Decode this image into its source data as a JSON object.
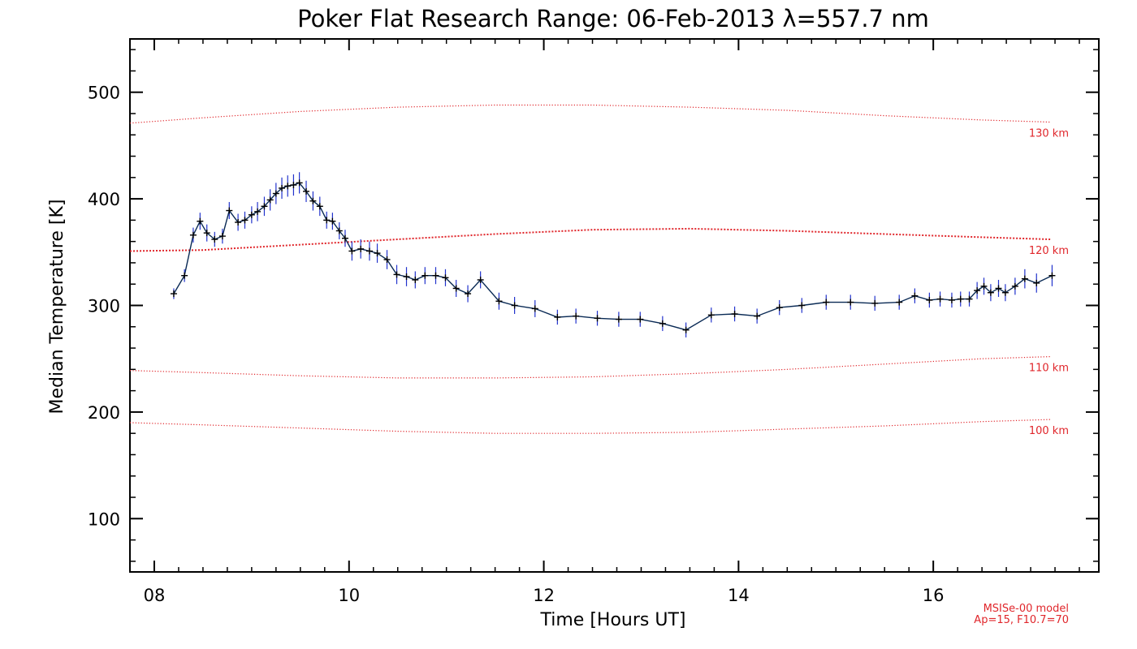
{
  "chart_data": {
    "type": "line",
    "title": "Poker Flat Research Range: 06-Feb-2013 λ=557.7 nm",
    "xlabel": "Time [Hours UT]",
    "ylabel": "Median Temperature [K]",
    "xlim": [
      7.75,
      17.7
    ],
    "ylim": [
      50,
      550
    ],
    "xticks": [
      8,
      10,
      12,
      14,
      16
    ],
    "xtick_labels": [
      "08",
      "10",
      "12",
      "14",
      "16"
    ],
    "yticks": [
      100,
      200,
      300,
      400,
      500
    ],
    "ytick_labels": [
      "100",
      "200",
      "300",
      "400",
      "500"
    ],
    "grid": false,
    "colors": {
      "data_line": "#0a2a55",
      "error_bar": "#2233cc",
      "marker": "#000000",
      "model": "#e0262b"
    },
    "series": [
      {
        "x": [
          8.2,
          8.31,
          8.4,
          8.47,
          8.54,
          8.62,
          8.7,
          8.77,
          8.86,
          8.93,
          9.0,
          9.06,
          9.13,
          9.19,
          9.25,
          9.31,
          9.37,
          9.43,
          9.49,
          9.56,
          9.63,
          9.7,
          9.77,
          9.83,
          9.9,
          9.96,
          10.03,
          10.12,
          10.21,
          10.29,
          10.39,
          10.49,
          10.59,
          10.68,
          10.78,
          10.89,
          10.99,
          11.1,
          11.22,
          11.35,
          11.54,
          11.7,
          11.91,
          12.14,
          12.33,
          12.55,
          12.77,
          12.99,
          13.22,
          13.46,
          13.72,
          13.96,
          14.19,
          14.42,
          14.65,
          14.9,
          15.15,
          15.4,
          15.65,
          15.81,
          15.96,
          16.07,
          16.19,
          16.28,
          16.37,
          16.45,
          16.52,
          16.59,
          16.67,
          16.74,
          16.84,
          16.94,
          17.06,
          17.22
        ],
        "values": [
          311,
          328,
          366,
          379,
          368,
          362,
          365,
          389,
          378,
          380,
          385,
          388,
          393,
          399,
          405,
          410,
          412,
          413,
          415,
          407,
          398,
          393,
          380,
          379,
          370,
          363,
          351,
          353,
          351,
          349,
          343,
          329,
          327,
          324,
          328,
          328,
          326,
          316,
          311,
          324,
          304,
          300,
          297,
          289,
          290,
          288,
          287,
          287,
          283,
          277,
          291,
          292,
          290,
          298,
          300,
          303,
          303,
          302,
          303,
          309,
          305,
          306,
          305,
          306,
          306,
          314,
          318,
          312,
          316,
          312,
          318,
          325,
          321,
          328
        ],
        "error": [
          5,
          6,
          7,
          8,
          8,
          7,
          7,
          8,
          8,
          8,
          8,
          9,
          9,
          10,
          10,
          10,
          10,
          10,
          10,
          10,
          9,
          9,
          8,
          8,
          8,
          8,
          9,
          9,
          9,
          9,
          9,
          9,
          9,
          8,
          8,
          8,
          8,
          8,
          8,
          8,
          8,
          8,
          8,
          7,
          7,
          7,
          7,
          7,
          7,
          7,
          7,
          7,
          7,
          7,
          7,
          7,
          7,
          7,
          7,
          7,
          7,
          7,
          7,
          7,
          7,
          8,
          8,
          8,
          8,
          8,
          8,
          9,
          9,
          10
        ]
      }
    ],
    "model_curves": [
      {
        "label": "130 km",
        "x": [
          7.75,
          8.5,
          9.5,
          10.5,
          11.5,
          12.5,
          13.5,
          14.5,
          15.5,
          16.5,
          17.2
        ],
        "values": [
          471,
          476,
          482,
          486,
          488,
          488,
          486,
          483,
          478,
          474,
          472
        ]
      },
      {
        "label": "120 km",
        "x": [
          7.75,
          8.5,
          9.5,
          10.5,
          11.5,
          12.5,
          13.5,
          14.5,
          15.5,
          16.5,
          17.2
        ],
        "values": [
          351,
          352,
          357,
          362,
          367,
          371,
          372,
          370,
          367,
          364,
          362
        ]
      },
      {
        "label": "110 km",
        "x": [
          7.75,
          8.5,
          9.5,
          10.5,
          11.5,
          12.5,
          13.5,
          14.5,
          15.5,
          16.5,
          17.2
        ],
        "values": [
          239,
          237,
          234,
          232,
          232,
          233,
          236,
          240,
          245,
          250,
          252
        ]
      },
      {
        "label": "100 km",
        "x": [
          7.75,
          8.5,
          9.5,
          10.5,
          11.5,
          12.5,
          13.5,
          14.5,
          15.5,
          16.5,
          17.2
        ],
        "values": [
          190,
          188,
          185,
          182,
          180,
          180,
          181,
          184,
          187,
          191,
          193
        ]
      }
    ],
    "model_labels": [
      "130 km",
      "120 km",
      "110 km",
      "100 km"
    ],
    "annotations": [
      "MSISe-00 model",
      "Ap=15, F10.7=70"
    ]
  }
}
